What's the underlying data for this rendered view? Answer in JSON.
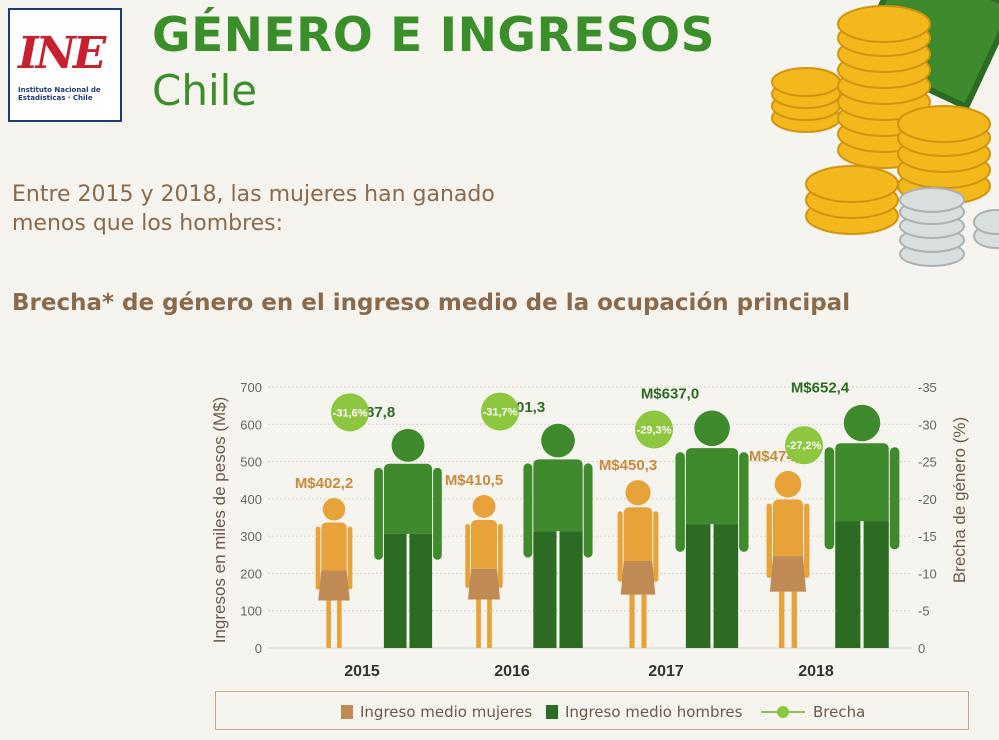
{
  "header": {
    "logo_text": "INE",
    "logo_subtitle": "Instituto Nacional de Estadísticas · Chile",
    "title": "GÉNERO E INGRESOS",
    "subtitle": "Chile"
  },
  "intro": {
    "line1": "Entre 2015 y 2018, las mujeres han ganado",
    "line2": "menos que los hombres:"
  },
  "section_title": "Brecha* de género en el ingreso medio  de la ocupación principal",
  "colors": {
    "women": "#e8a23a",
    "women_skirt": "#c08a55",
    "men": "#3f8a2c",
    "men_pants": "#2c6b22",
    "gap": "#8dc63f",
    "text_brown": "#8a6a4a",
    "title_green": "#3b8f2a"
  },
  "chart_data": {
    "type": "bar",
    "categories": [
      "2015",
      "2016",
      "2017",
      "2018"
    ],
    "series": [
      {
        "name": "Ingreso medio mujeres",
        "values": [
          402.2,
          410.5,
          450.3,
          474.9
        ],
        "labels": [
          "M$402,2",
          "M$410,5",
          "M$450,3",
          "M$474,9"
        ]
      },
      {
        "name": "Ingreso medio hombres",
        "values": [
          587.8,
          601.3,
          637.0,
          652.4
        ],
        "labels": [
          "M$587,8",
          "M$601,3",
          "M$637,0",
          "M$652,4"
        ]
      },
      {
        "name": "Brecha",
        "values": [
          -31.6,
          -31.7,
          -29.3,
          -27.2
        ],
        "labels": [
          "-31,6%",
          "-31,7%",
          "-29,3%",
          "-27,2%"
        ]
      }
    ],
    "ylabel": "Ingresos en miles de pesos (M$)",
    "ylim": [
      0,
      700
    ],
    "yticks": [
      "0",
      "100",
      "200",
      "300",
      "400",
      "500",
      "600",
      "700"
    ],
    "y2label": "Brecha de género (%)",
    "y2lim": [
      0,
      -35
    ],
    "y2ticks": [
      "0",
      "-5",
      "-10",
      "-15",
      "-20",
      "-25",
      "-30",
      "-35"
    ],
    "grid": true,
    "legend_position": "bottom"
  }
}
